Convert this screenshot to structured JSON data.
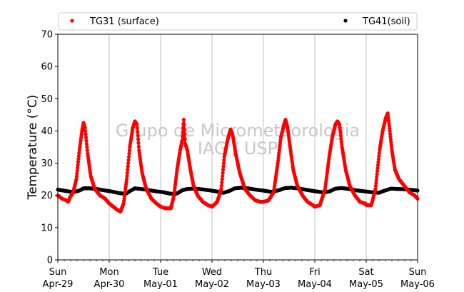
{
  "chart_data": {
    "type": "scatter",
    "title": "",
    "xlabel": "",
    "ylabel": "Temperature (°C)",
    "ylim": [
      0,
      70
    ],
    "yticks": [
      0,
      10,
      20,
      30,
      40,
      50,
      60,
      70
    ],
    "xlim_days": [
      0,
      7
    ],
    "xtick_labels": [
      {
        "day": "Sun",
        "date": "Apr-29"
      },
      {
        "day": "Mon",
        "date": "Apr-30"
      },
      {
        "day": "Tue",
        "date": "May-01"
      },
      {
        "day": "Wed",
        "date": "May-02"
      },
      {
        "day": "Thu",
        "date": "May-03"
      },
      {
        "day": "Fri",
        "date": "May-04"
      },
      {
        "day": "Sat",
        "date": "May-05"
      },
      {
        "day": "Sun",
        "date": "May-06"
      }
    ],
    "grid": "vertical",
    "legend_position": "top",
    "watermark": [
      "Grupo de Micrometeorologia",
      "IAG / USP"
    ],
    "series": [
      {
        "name": "TG31 (surface)",
        "color": "#ff0000",
        "marker": "circle",
        "points": [
          [
            0.0,
            20.0
          ],
          [
            0.08,
            19.0
          ],
          [
            0.16,
            18.5
          ],
          [
            0.2,
            18.0
          ],
          [
            0.24,
            19.5
          ],
          [
            0.3,
            21.0
          ],
          [
            0.36,
            25.0
          ],
          [
            0.42,
            34.0
          ],
          [
            0.47,
            40.0
          ],
          [
            0.5,
            42.5
          ],
          [
            0.53,
            41.0
          ],
          [
            0.58,
            33.0
          ],
          [
            0.64,
            26.0
          ],
          [
            0.72,
            22.0
          ],
          [
            0.82,
            20.0
          ],
          [
            0.92,
            19.0
          ],
          [
            1.0,
            17.5
          ],
          [
            1.08,
            16.5
          ],
          [
            1.16,
            15.5
          ],
          [
            1.22,
            15.0
          ],
          [
            1.28,
            17.5
          ],
          [
            1.34,
            25.0
          ],
          [
            1.4,
            35.0
          ],
          [
            1.46,
            41.0
          ],
          [
            1.5,
            43.0
          ],
          [
            1.54,
            42.0
          ],
          [
            1.58,
            34.0
          ],
          [
            1.64,
            27.0
          ],
          [
            1.72,
            22.0
          ],
          [
            1.82,
            19.0
          ],
          [
            1.92,
            17.5
          ],
          [
            2.0,
            16.5
          ],
          [
            2.1,
            16.0
          ],
          [
            2.2,
            16.0
          ],
          [
            2.26,
            20.0
          ],
          [
            2.32,
            28.0
          ],
          [
            2.38,
            34.0
          ],
          [
            2.42,
            37.0
          ],
          [
            2.45,
            43.5
          ],
          [
            2.48,
            36.0
          ],
          [
            2.52,
            34.0
          ],
          [
            2.58,
            28.0
          ],
          [
            2.64,
            23.0
          ],
          [
            2.72,
            20.0
          ],
          [
            2.82,
            18.0
          ],
          [
            2.92,
            17.0
          ],
          [
            3.0,
            16.5
          ],
          [
            3.1,
            18.0
          ],
          [
            3.18,
            22.0
          ],
          [
            3.24,
            32.0
          ],
          [
            3.3,
            37.0
          ],
          [
            3.36,
            40.5
          ],
          [
            3.4,
            39.0
          ],
          [
            3.46,
            33.0
          ],
          [
            3.54,
            27.0
          ],
          [
            3.64,
            22.0
          ],
          [
            3.74,
            20.0
          ],
          [
            3.84,
            18.5
          ],
          [
            3.94,
            18.0
          ],
          [
            4.0,
            18.0
          ],
          [
            4.1,
            18.5
          ],
          [
            4.2,
            21.0
          ],
          [
            4.28,
            30.0
          ],
          [
            4.34,
            38.0
          ],
          [
            4.4,
            42.0
          ],
          [
            4.43,
            43.5
          ],
          [
            4.47,
            41.0
          ],
          [
            4.52,
            35.0
          ],
          [
            4.58,
            28.0
          ],
          [
            4.66,
            23.0
          ],
          [
            4.76,
            20.0
          ],
          [
            4.86,
            18.0
          ],
          [
            4.96,
            17.0
          ],
          [
            5.0,
            16.5
          ],
          [
            5.1,
            17.0
          ],
          [
            5.2,
            22.0
          ],
          [
            5.28,
            32.0
          ],
          [
            5.34,
            38.0
          ],
          [
            5.4,
            42.0
          ],
          [
            5.44,
            43.0
          ],
          [
            5.48,
            42.0
          ],
          [
            5.53,
            35.0
          ],
          [
            5.6,
            28.0
          ],
          [
            5.68,
            23.0
          ],
          [
            5.78,
            20.0
          ],
          [
            5.88,
            18.0
          ],
          [
            5.98,
            17.5
          ],
          [
            6.0,
            17.0
          ],
          [
            6.1,
            17.0
          ],
          [
            6.18,
            22.0
          ],
          [
            6.26,
            34.0
          ],
          [
            6.32,
            40.0
          ],
          [
            6.38,
            44.0
          ],
          [
            6.42,
            45.5
          ],
          [
            6.46,
            40.0
          ],
          [
            6.5,
            34.0
          ],
          [
            6.56,
            28.0
          ],
          [
            6.64,
            25.0
          ],
          [
            6.74,
            23.0
          ],
          [
            6.84,
            21.0
          ],
          [
            6.94,
            20.0
          ],
          [
            7.0,
            19.0
          ]
        ]
      },
      {
        "name": "TG41(soil)",
        "color": "#000000",
        "marker": "circle",
        "points": [
          [
            0.0,
            21.8
          ],
          [
            0.15,
            21.4
          ],
          [
            0.3,
            21.0
          ],
          [
            0.42,
            21.5
          ],
          [
            0.5,
            22.2
          ],
          [
            0.62,
            22.2
          ],
          [
            0.75,
            22.0
          ],
          [
            0.9,
            21.6
          ],
          [
            1.05,
            21.2
          ],
          [
            1.2,
            20.7
          ],
          [
            1.32,
            20.5
          ],
          [
            1.42,
            21.5
          ],
          [
            1.5,
            22.2
          ],
          [
            1.62,
            22.0
          ],
          [
            1.75,
            21.7
          ],
          [
            1.9,
            21.3
          ],
          [
            2.05,
            21.0
          ],
          [
            2.2,
            20.5
          ],
          [
            2.32,
            20.6
          ],
          [
            2.42,
            21.6
          ],
          [
            2.52,
            22.0
          ],
          [
            2.66,
            22.1
          ],
          [
            2.8,
            21.9
          ],
          [
            2.95,
            21.6
          ],
          [
            3.1,
            21.2
          ],
          [
            3.22,
            20.8
          ],
          [
            3.34,
            21.4
          ],
          [
            3.44,
            22.2
          ],
          [
            3.56,
            22.4
          ],
          [
            3.7,
            22.2
          ],
          [
            3.85,
            21.8
          ],
          [
            4.0,
            21.5
          ],
          [
            4.15,
            21.1
          ],
          [
            4.3,
            21.6
          ],
          [
            4.42,
            22.3
          ],
          [
            4.55,
            22.4
          ],
          [
            4.7,
            22.1
          ],
          [
            4.85,
            21.7
          ],
          [
            5.0,
            21.3
          ],
          [
            5.14,
            21.0
          ],
          [
            5.28,
            21.2
          ],
          [
            5.4,
            22.1
          ],
          [
            5.52,
            22.3
          ],
          [
            5.66,
            22.0
          ],
          [
            5.8,
            21.6
          ],
          [
            5.95,
            21.3
          ],
          [
            6.1,
            21.0
          ],
          [
            6.24,
            20.8
          ],
          [
            6.36,
            21.5
          ],
          [
            6.48,
            22.1
          ],
          [
            6.62,
            22.0
          ],
          [
            6.76,
            21.9
          ],
          [
            6.9,
            21.7
          ],
          [
            7.0,
            21.5
          ]
        ]
      }
    ]
  }
}
